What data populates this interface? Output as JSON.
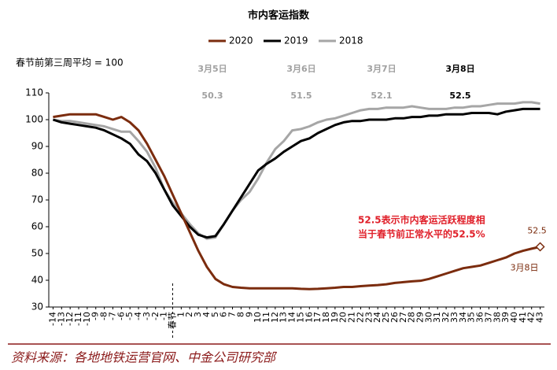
{
  "chart_data": {
    "type": "line",
    "title": "市内客运指数",
    "y_unit_label": "春节前第三周平均 = 100",
    "categories": [
      "-14",
      "-13",
      "-12",
      "-11",
      "-10",
      "-9",
      "-8",
      "-7",
      "-6",
      "-5",
      "-4",
      "-3",
      "-2",
      "-1",
      "春节",
      "1",
      "2",
      "3",
      "4",
      "5",
      "6",
      "7",
      "8",
      "9",
      "10",
      "11",
      "12",
      "13",
      "14",
      "15",
      "16",
      "17",
      "18",
      "19",
      "20",
      "21",
      "22",
      "23",
      "24",
      "25",
      "26",
      "27",
      "28",
      "29",
      "30",
      "31",
      "32",
      "33",
      "34",
      "35",
      "36",
      "37",
      "38",
      "39",
      "40",
      "41",
      "42",
      "43"
    ],
    "series": [
      {
        "name": "2020",
        "color": "#7b2c0e",
        "values": [
          101,
          101.5,
          102,
          102,
          102,
          102,
          101,
          100,
          101,
          99,
          96,
          91,
          85,
          79,
          72,
          65,
          58,
          51,
          45,
          40.5,
          38.5,
          37.5,
          37.2,
          37,
          37,
          37,
          37,
          37,
          37,
          36.8,
          36.7,
          36.8,
          37,
          37.2,
          37.5,
          37.5,
          37.8,
          38,
          38.2,
          38.5,
          39,
          39.3,
          39.6,
          39.8,
          40.5,
          41.5,
          42.5,
          43.5,
          44.5,
          45,
          45.5,
          46.5,
          47.5,
          48.5,
          50,
          51,
          51.8,
          52.5
        ]
      },
      {
        "name": "2019",
        "color": "#000000",
        "values": [
          100,
          99,
          98.5,
          98,
          97.5,
          97,
          96,
          94.5,
          93,
          91,
          87,
          84.5,
          80,
          74,
          68,
          64,
          60,
          57,
          56,
          56.5,
          61,
          66,
          71,
          76,
          81,
          83.5,
          85.5,
          88,
          90,
          92,
          93,
          95,
          96.5,
          98,
          99,
          99.5,
          99.5,
          100,
          100,
          100,
          100.5,
          100.5,
          101,
          101,
          101.5,
          101.5,
          102,
          102,
          102,
          102.5,
          102.5,
          102.5,
          102,
          103,
          103.5,
          104,
          104,
          104
        ]
      },
      {
        "name": "2018",
        "color": "#a6a6a6",
        "values": [
          100,
          99.5,
          99.5,
          99,
          98.5,
          98,
          97.5,
          96.5,
          95.5,
          95.5,
          92,
          88,
          82,
          74,
          69,
          65,
          61,
          57.5,
          55.5,
          56,
          61,
          66,
          70,
          73,
          78,
          84,
          89,
          92,
          96,
          96.5,
          97.5,
          99,
          100,
          100.5,
          101.5,
          102.5,
          103.5,
          104,
          104,
          104.5,
          104.5,
          104.5,
          105,
          104.5,
          104,
          104,
          104,
          104.5,
          104.5,
          105,
          105,
          105.5,
          106,
          106,
          106,
          106.5,
          106.5,
          106
        ]
      }
    ],
    "ylim": [
      30,
      110
    ],
    "yticks": [
      30,
      40,
      50,
      60,
      70,
      80,
      90,
      100,
      110
    ],
    "top_annotations": [
      {
        "date": "3月5日",
        "value": 50.3,
        "color": "#a0a0a0"
      },
      {
        "date": "3月6日",
        "value": 51.5,
        "color": "#a0a0a0"
      },
      {
        "date": "3月7日",
        "value": 52.1,
        "color": "#a0a0a0"
      },
      {
        "date": "3月8日",
        "value": 52.5,
        "color": "#000000"
      }
    ],
    "note": [
      "52.5表示市内客运活跃程度相",
      "当于春节前正常水平的52.5%"
    ],
    "end_label": {
      "value": 52.5,
      "date": "3月8日"
    },
    "source": "资料来源：各地地铁运营官网、中金公司研究部"
  }
}
